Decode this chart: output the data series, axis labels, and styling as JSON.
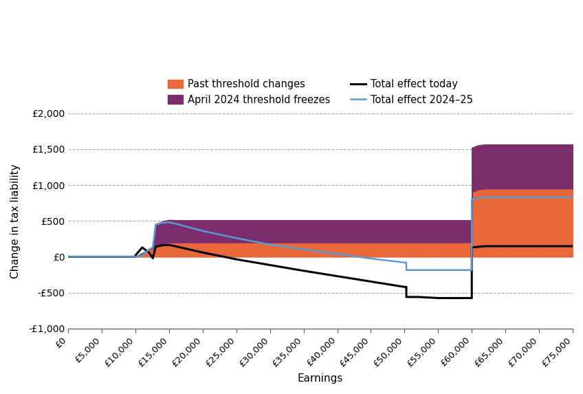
{
  "earnings": [
    0,
    5000,
    9999,
    10000,
    11000,
    12000,
    12570,
    12571,
    13000,
    14000,
    15000,
    15001,
    16000,
    20000,
    25000,
    30000,
    35000,
    40000,
    45000,
    50000,
    50269,
    50270,
    52000,
    55000,
    55001,
    57000,
    59999,
    60000,
    61000,
    62000,
    65000,
    70000,
    75000
  ],
  "past_threshold": [
    0,
    0,
    0,
    0,
    50,
    100,
    125,
    125,
    145,
    175,
    200,
    200,
    200,
    200,
    200,
    200,
    200,
    200,
    200,
    200,
    200,
    200,
    200,
    200,
    200,
    200,
    200,
    900,
    940,
    950,
    950,
    950,
    950
  ],
  "april_freeze": [
    0,
    0,
    0,
    0,
    0,
    0,
    0,
    0,
    310,
    320,
    315,
    315,
    310,
    310,
    310,
    310,
    310,
    310,
    310,
    310,
    310,
    310,
    310,
    310,
    310,
    310,
    310,
    620,
    615,
    615,
    615,
    615,
    615
  ],
  "total_today": [
    0,
    0,
    0,
    20,
    130,
    60,
    -20,
    -20,
    140,
    160,
    165,
    165,
    145,
    60,
    -35,
    -115,
    -195,
    -270,
    -345,
    -420,
    -420,
    -560,
    -560,
    -575,
    -575,
    -575,
    -575,
    130,
    140,
    148,
    148,
    148,
    148
  ],
  "total_2024_25": [
    0,
    0,
    0,
    0,
    20,
    100,
    130,
    130,
    450,
    475,
    480,
    480,
    460,
    360,
    260,
    170,
    105,
    40,
    -25,
    -80,
    -80,
    -185,
    -185,
    -185,
    -185,
    -185,
    -185,
    800,
    825,
    830,
    830,
    830,
    830
  ],
  "color_orange": "#E8683A",
  "color_purple": "#7B2D6E",
  "color_black": "#000000",
  "color_blue": "#5B9BD5",
  "grid_color": "#AAAAAA",
  "ylabel": "Change in tax liability",
  "xlabel": "Earnings",
  "ylim_min": -1000,
  "ylim_max": 2000,
  "yticks": [
    -1000,
    -500,
    0,
    500,
    1000,
    1500,
    2000
  ],
  "ytick_labels": [
    "-£1,000",
    "-£500",
    "£0",
    "£500",
    "£1,000",
    "£1,500",
    "£2,000"
  ],
  "xticks": [
    0,
    5000,
    10000,
    15000,
    20000,
    25000,
    30000,
    35000,
    40000,
    45000,
    50000,
    55000,
    60000,
    65000,
    70000,
    75000
  ],
  "xtick_labels": [
    "£0",
    "£5,000",
    "£10,000",
    "£15,000",
    "£20,000",
    "£25,000",
    "£30,000",
    "£35,000",
    "£40,000",
    "£45,000",
    "£50,000",
    "£55,000",
    "£60,000",
    "£65,000",
    "£70,000",
    "£75,000"
  ],
  "legend_labels": [
    "Past threshold changes",
    "April 2024 threshold freezes",
    "Total effect today",
    "Total effect 2024–25"
  ]
}
